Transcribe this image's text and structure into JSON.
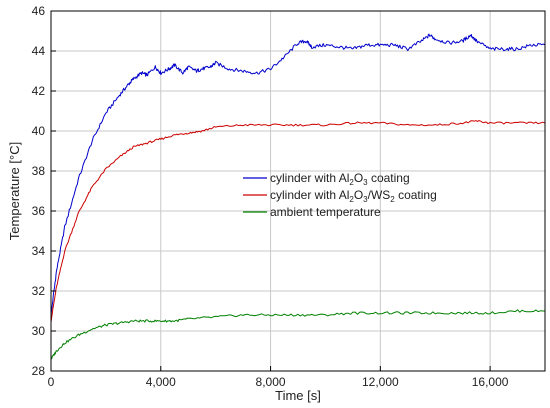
{
  "chart_data": {
    "type": "line",
    "xlabel": "Time [s]",
    "ylabel": "Temperature [°C]",
    "xlim": [
      0,
      18000
    ],
    "ylim": [
      28,
      46
    ],
    "x_ticks": [
      0,
      4000,
      8000,
      12000,
      16000
    ],
    "x_tick_labels": [
      "0",
      "4,000",
      "8,000",
      "12,000",
      "16,000"
    ],
    "y_ticks": [
      28,
      30,
      32,
      34,
      36,
      38,
      40,
      42,
      44,
      46
    ],
    "y_tick_labels": [
      "28",
      "30",
      "32",
      "34",
      "36",
      "38",
      "40",
      "42",
      "44",
      "46"
    ],
    "grid": true,
    "legend_position": "center-right",
    "series": [
      {
        "legend": [
          {
            "t": "cylinder with Al"
          },
          {
            "t": "2",
            "sub": true
          },
          {
            "t": "O"
          },
          {
            "t": "3",
            "sub": true
          },
          {
            "t": " coating"
          }
        ],
        "color": "#0000cc",
        "x": [
          0,
          200,
          500,
          1000,
          1500,
          2000,
          2500,
          2800,
          3000,
          3300,
          3500,
          3800,
          4000,
          4300,
          4500,
          4800,
          5000,
          5300,
          5500,
          5800,
          6000,
          6500,
          7000,
          7500,
          8000,
          8500,
          9000,
          9300,
          9500,
          10000,
          10500,
          11000,
          11500,
          12000,
          12500,
          13000,
          13500,
          13800,
          14000,
          14500,
          15000,
          15300,
          15500,
          16000,
          16500,
          17000,
          17500,
          18000
        ],
        "y": [
          30.8,
          33.0,
          35.2,
          37.6,
          39.5,
          40.9,
          41.8,
          42.3,
          42.6,
          42.9,
          42.8,
          43.2,
          42.9,
          43.1,
          43.3,
          42.9,
          43.2,
          43.0,
          43.1,
          43.2,
          43.4,
          43.1,
          43.0,
          42.9,
          43.1,
          43.7,
          44.4,
          44.5,
          44.2,
          44.3,
          44.2,
          44.1,
          44.3,
          44.3,
          44.3,
          44.1,
          44.5,
          44.8,
          44.6,
          44.4,
          44.5,
          44.8,
          44.5,
          44.1,
          44.1,
          44.1,
          44.3,
          44.3
        ]
      },
      {
        "legend": [
          {
            "t": "cylinder with Al"
          },
          {
            "t": "2",
            "sub": true
          },
          {
            "t": "O"
          },
          {
            "t": "3",
            "sub": true
          },
          {
            "t": "/WS"
          },
          {
            "t": "2",
            "sub": true
          },
          {
            "t": " coating"
          }
        ],
        "color": "#cc0000",
        "x": [
          0,
          200,
          500,
          1000,
          1500,
          2000,
          2500,
          3000,
          3500,
          4000,
          4500,
          5000,
          5500,
          6000,
          7000,
          8000,
          9000,
          10000,
          11000,
          12000,
          13000,
          14000,
          15000,
          15500,
          16000,
          17000,
          18000
        ],
        "y": [
          30.5,
          32.2,
          34.0,
          35.9,
          37.2,
          38.1,
          38.7,
          39.2,
          39.4,
          39.6,
          39.8,
          39.9,
          40.0,
          40.2,
          40.3,
          40.3,
          40.3,
          40.3,
          40.4,
          40.4,
          40.3,
          40.3,
          40.4,
          40.5,
          40.4,
          40.4,
          40.4
        ]
      },
      {
        "legend": [
          {
            "t": "ambient temperature"
          }
        ],
        "color": "#008000",
        "x": [
          0,
          200,
          500,
          1000,
          1500,
          2000,
          2500,
          3000,
          3500,
          4000,
          4500,
          5000,
          6000,
          7000,
          8000,
          9000,
          10000,
          11000,
          12000,
          13000,
          14000,
          15000,
          16000,
          17000,
          18000
        ],
        "y": [
          28.6,
          29.0,
          29.4,
          29.8,
          30.1,
          30.3,
          30.4,
          30.5,
          30.5,
          30.5,
          30.5,
          30.6,
          30.7,
          30.8,
          30.8,
          30.8,
          30.8,
          30.9,
          30.9,
          30.9,
          30.9,
          30.9,
          30.9,
          31.0,
          31.0
        ]
      }
    ]
  }
}
